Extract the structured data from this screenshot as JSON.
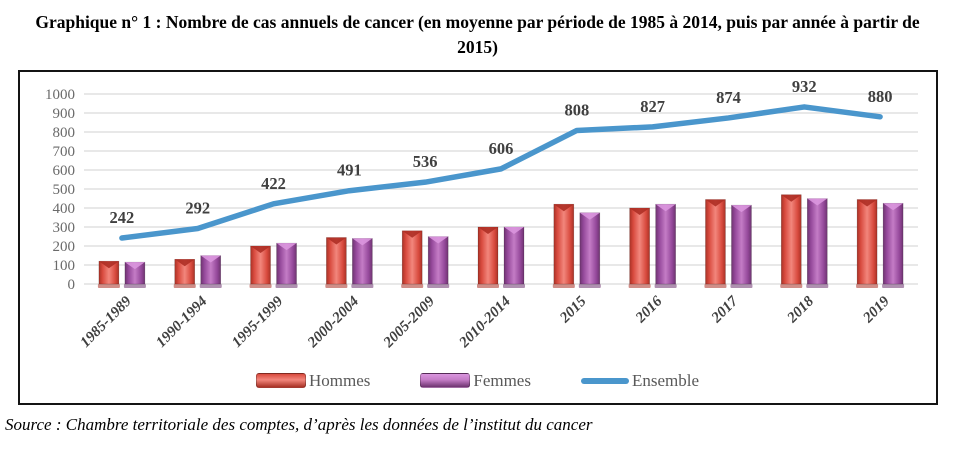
{
  "title": "Graphique n° 1 : Nombre de cas annuels de cancer (en moyenne par période de 1985 à 2014, puis par année à partir de 2015)",
  "source": "Source : Chambre territoriale des comptes, d’après les données de l’institut du cancer",
  "legend": {
    "hommes": "Hommes",
    "femmes": "Femmes",
    "ensemble": "Ensemble"
  },
  "colors": {
    "hommes_edge": "#A93226",
    "hommes_mid": "#D84A3E",
    "hommes_center": "#F2867C",
    "hommes_chevron": "#AE2F25",
    "femmes_edge": "#6E3470",
    "femmes_mid": "#94489A",
    "femmes_center": "#C47CC6",
    "femmes_chevron": "#DA96DE",
    "ensemble_line": "#4A96CC",
    "grid": "#D9D9D9",
    "tick_text": "#6A6A6A",
    "xlabel_text": "#3F3F3F",
    "data_label_text": "#404040",
    "legend_text": "#595959",
    "frame_border": "#141414"
  },
  "chart_data": {
    "type": "bar",
    "title": "Graphique n° 1 : Nombre de cas annuels de cancer (en moyenne par période de 1985 à 2014, puis par année à partir de 2015)",
    "categories": [
      "1985-1989",
      "1990-1994",
      "1995-1999",
      "2000-2004",
      "2005-2009",
      "2010-2014",
      "2015",
      "2016",
      "2017",
      "2018",
      "2019"
    ],
    "series": [
      {
        "name": "Hommes",
        "type": "bar",
        "values": [
          120,
          130,
          200,
          245,
          280,
          300,
          420,
          400,
          445,
          470,
          445
        ]
      },
      {
        "name": "Femmes",
        "type": "bar",
        "values": [
          115,
          150,
          215,
          240,
          250,
          300,
          375,
          420,
          415,
          450,
          425
        ]
      },
      {
        "name": "Ensemble",
        "type": "line",
        "values": [
          242,
          292,
          422,
          491,
          536,
          606,
          808,
          827,
          874,
          932,
          880
        ],
        "data_labels": true
      }
    ],
    "xlabel": "",
    "ylabel": "",
    "ylim": [
      0,
      1000
    ],
    "ytick_step": 100,
    "grid": true,
    "legend_position": "bottom"
  }
}
